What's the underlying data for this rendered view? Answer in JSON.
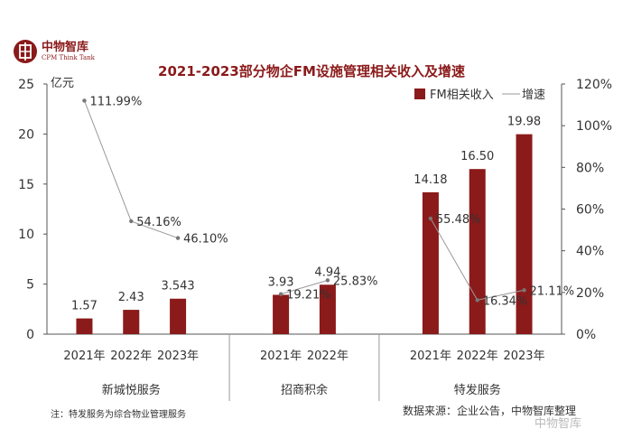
{
  "logo": {
    "name_cn": "中物智库",
    "name_en": "CPM Think Tank",
    "icon": "seal-logo-icon"
  },
  "note": "注：特发服务为综合物业管理服务",
  "source": "数据来源：企业公告，中物智库整理",
  "watermark": "中物智库",
  "colors": {
    "bar": "#8b1a1a",
    "title": "#8b1a1a",
    "line": "#999999",
    "axis": "#555555"
  },
  "chart_data": {
    "type": "bar",
    "title": "2021-2023部分物企FM设施管理相关收入及增速",
    "ylabel": "亿元",
    "y2label": "",
    "ylim": [
      0,
      25
    ],
    "y2lim": [
      0,
      1.2
    ],
    "yticks": [
      "0",
      "5",
      "10",
      "15",
      "20",
      "25"
    ],
    "y2ticks": [
      "0%",
      "20%",
      "40%",
      "60%",
      "80%",
      "100%",
      "120%"
    ],
    "legend": {
      "position": "top-right",
      "bar": "FM相关收入",
      "line": "增速"
    },
    "groups": [
      {
        "company": "新城悦服务",
        "points": [
          {
            "year": "2021年",
            "revenue": 1.57,
            "revenue_label": "1.57",
            "growth": 1.1199,
            "growth_label": "111.99%"
          },
          {
            "year": "2022年",
            "revenue": 2.43,
            "revenue_label": "2.43",
            "growth": 0.5416,
            "growth_label": "54.16%"
          },
          {
            "year": "2023年",
            "revenue": 3.543,
            "revenue_label": "3.543",
            "growth": 0.461,
            "growth_label": "46.10%"
          }
        ]
      },
      {
        "company": "招商积余",
        "points": [
          {
            "year": "2021年",
            "revenue": 3.93,
            "revenue_label": "3.93",
            "growth": 0.1921,
            "growth_label": "19.21%"
          },
          {
            "year": "2022年",
            "revenue": 4.94,
            "revenue_label": "4.94",
            "growth": 0.2583,
            "growth_label": "25.83%"
          }
        ]
      },
      {
        "company": "特发服务",
        "points": [
          {
            "year": "2021年",
            "revenue": 14.18,
            "revenue_label": "14.18",
            "growth": 0.5548,
            "growth_label": "55.48%"
          },
          {
            "year": "2022年",
            "revenue": 16.5,
            "revenue_label": "16.50",
            "growth": 0.1634,
            "growth_label": "16.34%"
          },
          {
            "year": "2023年",
            "revenue": 19.98,
            "revenue_label": "19.98",
            "growth": 0.2111,
            "growth_label": "21.11%"
          }
        ]
      }
    ]
  }
}
